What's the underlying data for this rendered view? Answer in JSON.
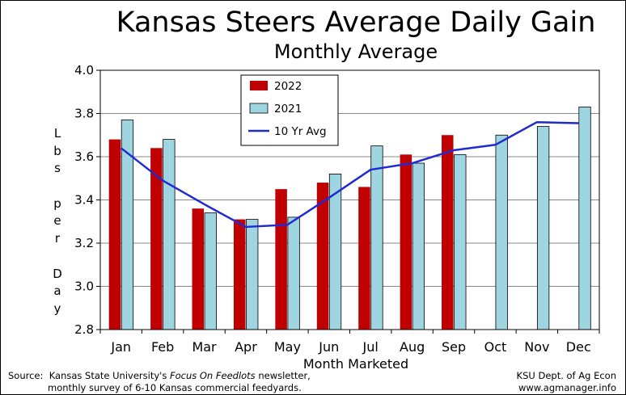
{
  "chart_data": {
    "type": "bar",
    "title": "Kansas Steers Average Daily Gain",
    "subtitle": "Monthly Average",
    "xlabel": "Month Marketed",
    "ylabel": [
      "L",
      "b",
      "s",
      "",
      "p",
      "e",
      "r",
      "",
      "D",
      "a",
      "y"
    ],
    "categories": [
      "Jan",
      "Feb",
      "Mar",
      "Apr",
      "May",
      "Jun",
      "Jul",
      "Aug",
      "Sep",
      "Oct",
      "Nov",
      "Dec"
    ],
    "ylim": [
      2.8,
      4.0
    ],
    "yticks": [
      "2.8",
      "3.0",
      "3.2",
      "3.4",
      "3.6",
      "3.8",
      "4.0"
    ],
    "grid": true,
    "legend_position": "top-left",
    "series": [
      {
        "name": "2022",
        "kind": "bar",
        "color": "#c00000",
        "values": [
          3.68,
          3.64,
          3.36,
          3.31,
          3.45,
          3.48,
          3.46,
          3.61,
          3.7,
          null,
          null,
          null
        ]
      },
      {
        "name": "2021",
        "kind": "bar",
        "color": "#9fd5e0",
        "values": [
          3.77,
          3.68,
          3.34,
          3.31,
          3.32,
          3.52,
          3.65,
          3.57,
          3.61,
          3.7,
          3.74,
          3.83
        ]
      },
      {
        "name": "10 Yr Avg",
        "kind": "line",
        "color": "#1f2bd1",
        "values": [
          3.64,
          3.49,
          3.38,
          3.275,
          3.285,
          3.41,
          3.54,
          3.57,
          3.63,
          3.655,
          3.76,
          3.755
        ]
      }
    ]
  },
  "source": {
    "label": "Source:",
    "line1_pre": "Kansas State University's ",
    "line1_italic": "Focus On Feedlots",
    "line1_post": " newsletter,",
    "line2": "monthly survey of 6-10 Kansas commercial feedyards."
  },
  "credit": {
    "line1": "KSU Dept. of Ag Econ",
    "line2": "www.agmanager.info"
  }
}
